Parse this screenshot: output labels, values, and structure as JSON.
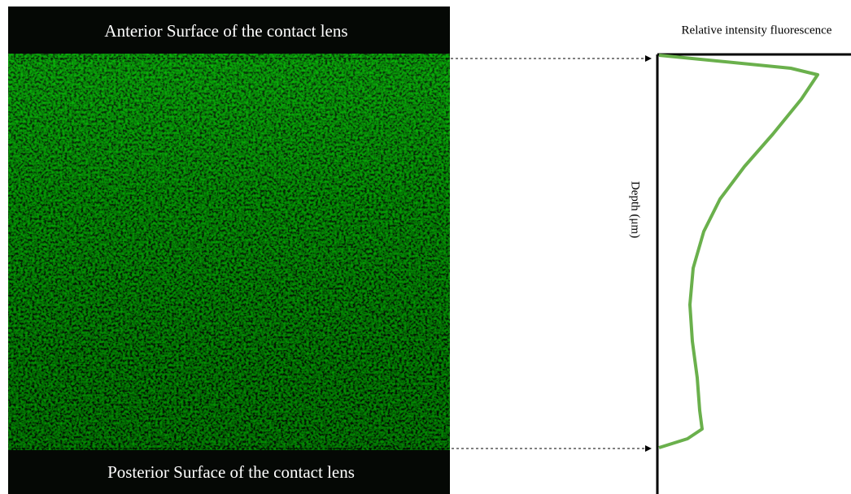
{
  "image": {
    "top_label": "Anterior Surface of the contact lens",
    "bottom_label": "Posterior Surface of the contact lens"
  },
  "profile": {
    "title": "Relative intensity fluorescence",
    "y_label": "Depth (μm)"
  }
}
